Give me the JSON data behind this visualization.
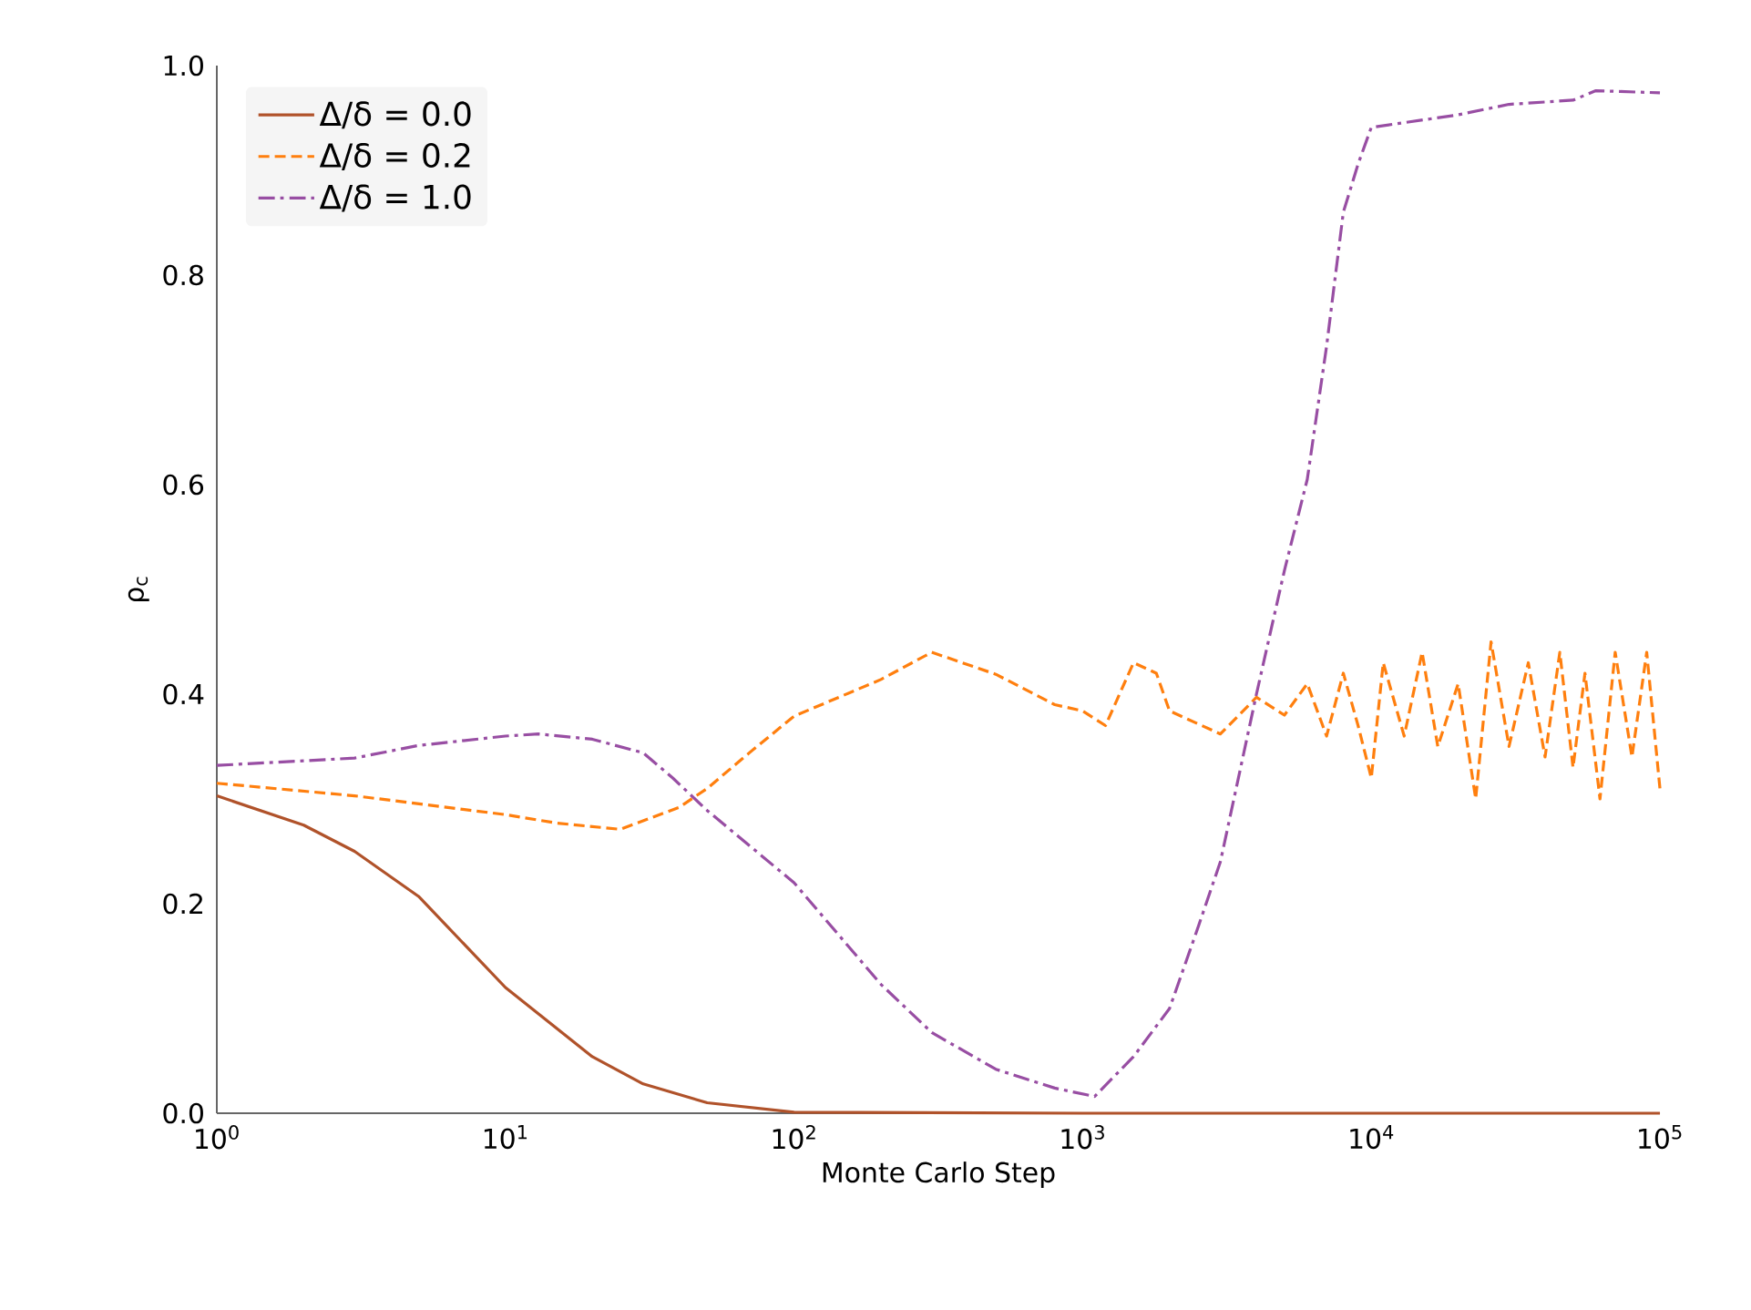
{
  "chart_data": {
    "type": "line",
    "xlabel": "Monte Carlo Step",
    "ylabel": "ρ$_{c}$",
    "log": "x",
    "legend": "top left",
    "grid": false,
    "xlim": [
      1,
      100000
    ],
    "ylim": [
      0,
      1.0
    ],
    "xticks": [
      {
        "value": 1,
        "label": "10$^{0}$"
      },
      {
        "value": 10,
        "label": "10$^{1}$"
      },
      {
        "value": 100,
        "label": "10$^{2}$"
      },
      {
        "value": 1000,
        "label": "10$^{3}$"
      },
      {
        "value": 10000,
        "label": "10$^{4}$"
      },
      {
        "value": 100000,
        "label": "10$^{5}$"
      }
    ],
    "yticks": [
      {
        "value": 0,
        "label": "0.0"
      },
      {
        "value": 0.2,
        "label": "0.2"
      },
      {
        "value": 0.4,
        "label": "0.4"
      },
      {
        "value": 0.6,
        "label": "0.6"
      },
      {
        "value": 0.8,
        "label": "0.8"
      },
      {
        "value": 1.0,
        "label": "1.0"
      }
    ],
    "series": [
      {
        "name": "Δ/δ = 0.0",
        "color": "#b0522a",
        "line_style": "solid",
        "x": [
          1,
          2,
          3,
          5,
          10,
          20,
          30,
          50,
          100,
          1000,
          10000,
          100000
        ],
        "values": [
          0.303,
          0.275,
          0.25,
          0.207,
          0.12,
          0.054,
          0.028,
          0.01,
          0.001,
          0.0,
          0.0,
          0.0
        ]
      },
      {
        "name": "Δ/δ = 0.2",
        "color": "#ff7f0e",
        "line_style": "dashed",
        "x": [
          1,
          3,
          10,
          15,
          25,
          40,
          50,
          70,
          100,
          200,
          300,
          500,
          800,
          1000,
          1200,
          1500,
          1800,
          2000,
          3000,
          4000,
          5000,
          6000,
          7000,
          8000,
          9000,
          10000,
          11000,
          13000,
          15000,
          17000,
          20000,
          23000,
          26000,
          30000,
          35000,
          40000,
          45000,
          50000,
          55000,
          62000,
          70000,
          80000,
          90000,
          100000
        ],
        "values": [
          0.315,
          0.303,
          0.285,
          0.277,
          0.271,
          0.292,
          0.31,
          0.344,
          0.379,
          0.414,
          0.44,
          0.419,
          0.39,
          0.384,
          0.37,
          0.43,
          0.42,
          0.384,
          0.362,
          0.397,
          0.38,
          0.41,
          0.36,
          0.42,
          0.37,
          0.32,
          0.43,
          0.36,
          0.44,
          0.35,
          0.41,
          0.3,
          0.45,
          0.35,
          0.43,
          0.34,
          0.44,
          0.33,
          0.42,
          0.3,
          0.44,
          0.34,
          0.44,
          0.31
        ]
      },
      {
        "name": "Δ/δ = 1.0",
        "color": "#984ea3",
        "line_style": "dashdot",
        "x": [
          1,
          3,
          5,
          10,
          13,
          20,
          30,
          38,
          50,
          100,
          200,
          300,
          500,
          800,
          1100,
          1500,
          2000,
          2500,
          3000,
          4000,
          5000,
          6000,
          7000,
          8000,
          9000,
          10000,
          20000,
          30000,
          50000,
          60000,
          100000
        ],
        "values": [
          0.332,
          0.339,
          0.351,
          0.36,
          0.362,
          0.357,
          0.344,
          0.32,
          0.289,
          0.22,
          0.123,
          0.077,
          0.042,
          0.024,
          0.016,
          0.054,
          0.1,
          0.176,
          0.24,
          0.4,
          0.518,
          0.605,
          0.732,
          0.86,
          0.906,
          0.941,
          0.953,
          0.963,
          0.967,
          0.976,
          0.974
        ]
      }
    ]
  }
}
